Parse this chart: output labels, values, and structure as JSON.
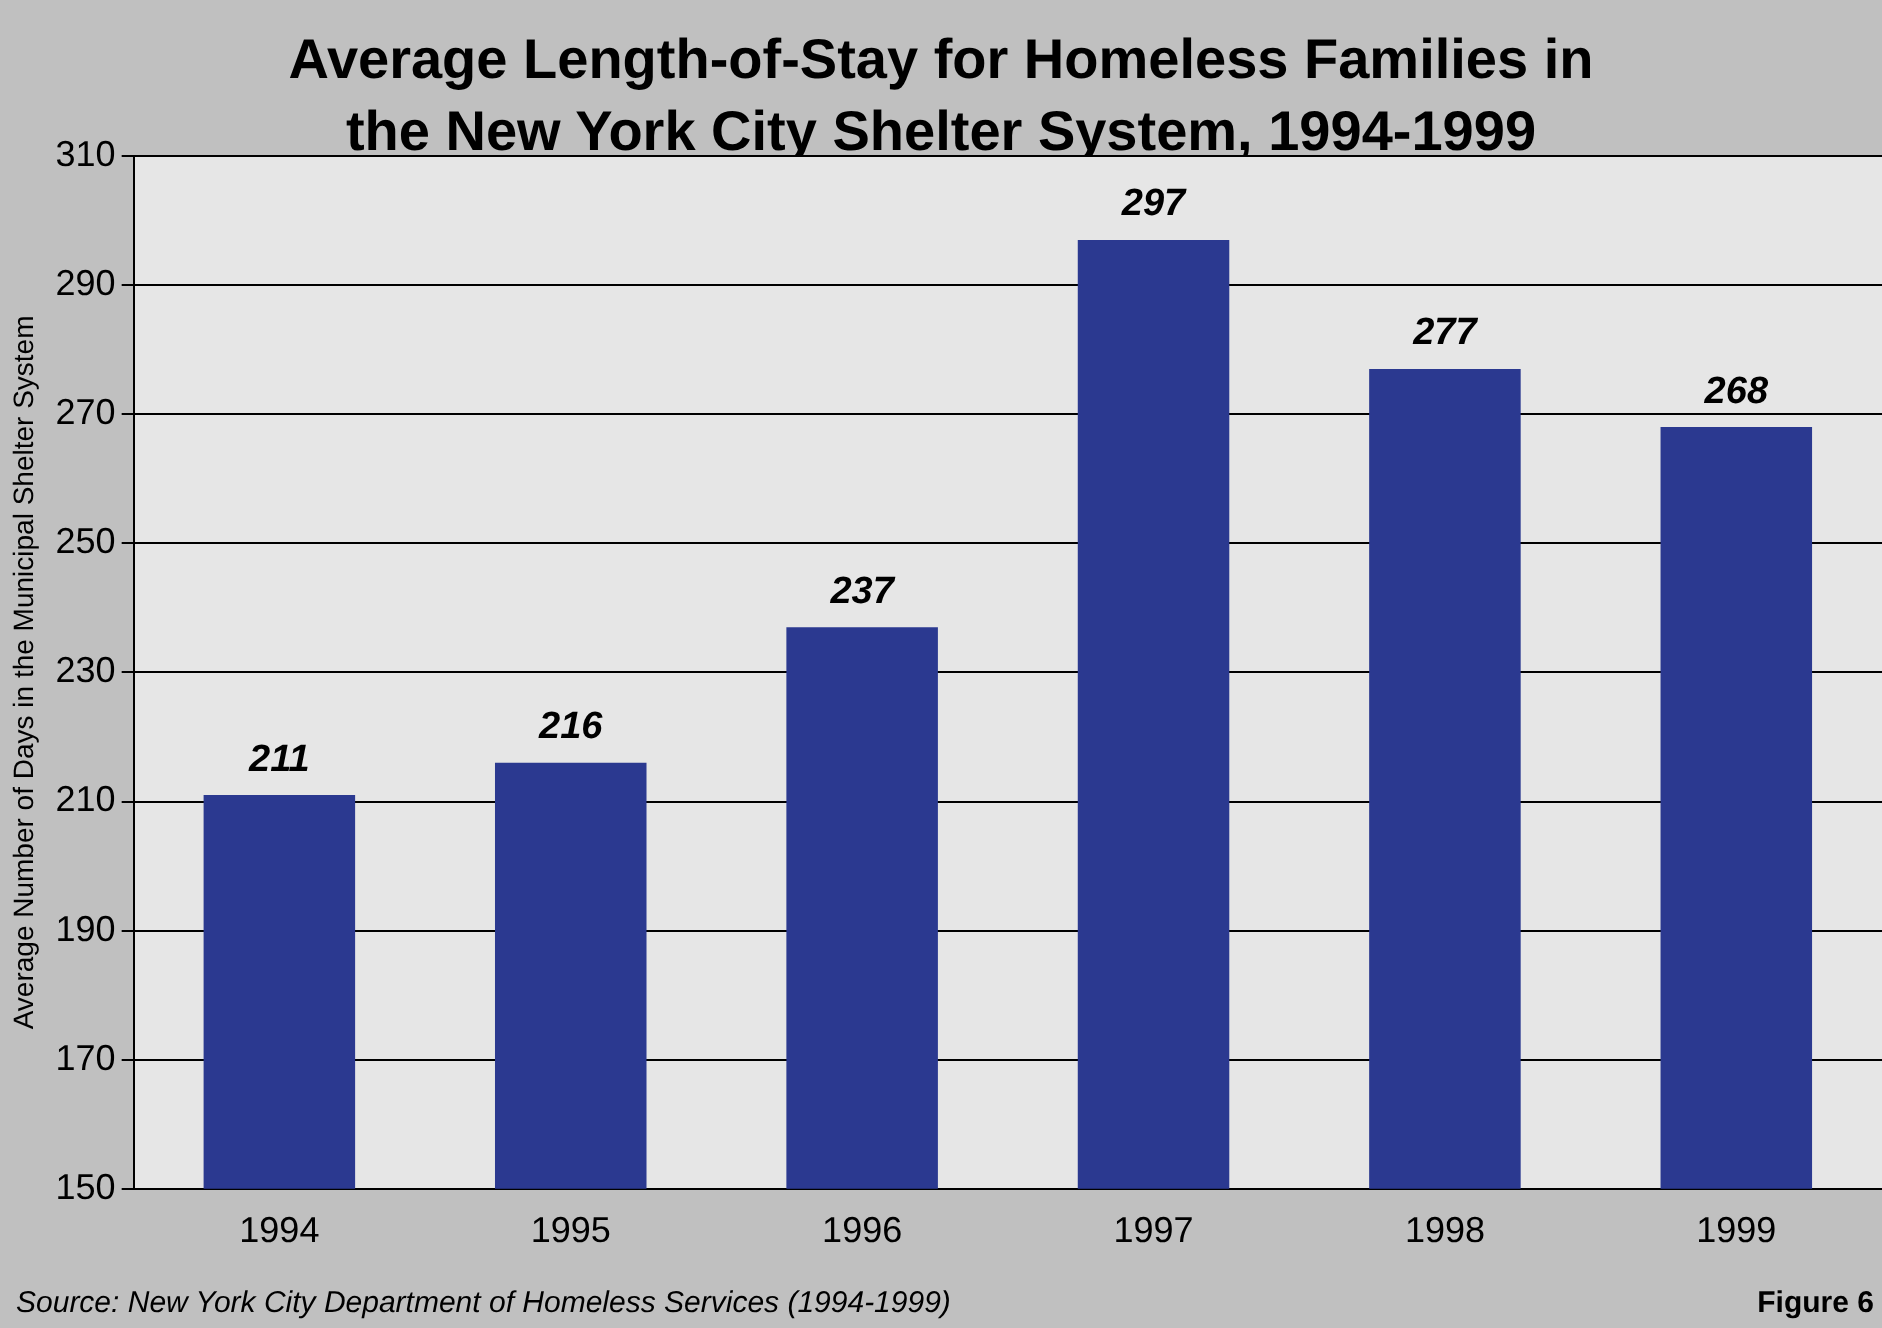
{
  "chart_data": {
    "type": "bar",
    "title": "Average Length-of-Stay for Homeless Families in the New York City Shelter System, 1994-1999",
    "ylabel": "Average Number of Days in the Municipal Shelter System",
    "categories": [
      "1994",
      "1995",
      "1996",
      "1997",
      "1998",
      "1999"
    ],
    "values": [
      211,
      216,
      237,
      297,
      277,
      268
    ],
    "color": "#2b3990",
    "ylim": [
      150,
      310
    ],
    "yticks": [
      150,
      170,
      190,
      210,
      230,
      250,
      270,
      290,
      310
    ],
    "grid": "y",
    "data_labels": true,
    "annotations": [
      "Source:  New York City Department of Homeless Services (1994-1999)",
      "Figure 6"
    ]
  }
}
